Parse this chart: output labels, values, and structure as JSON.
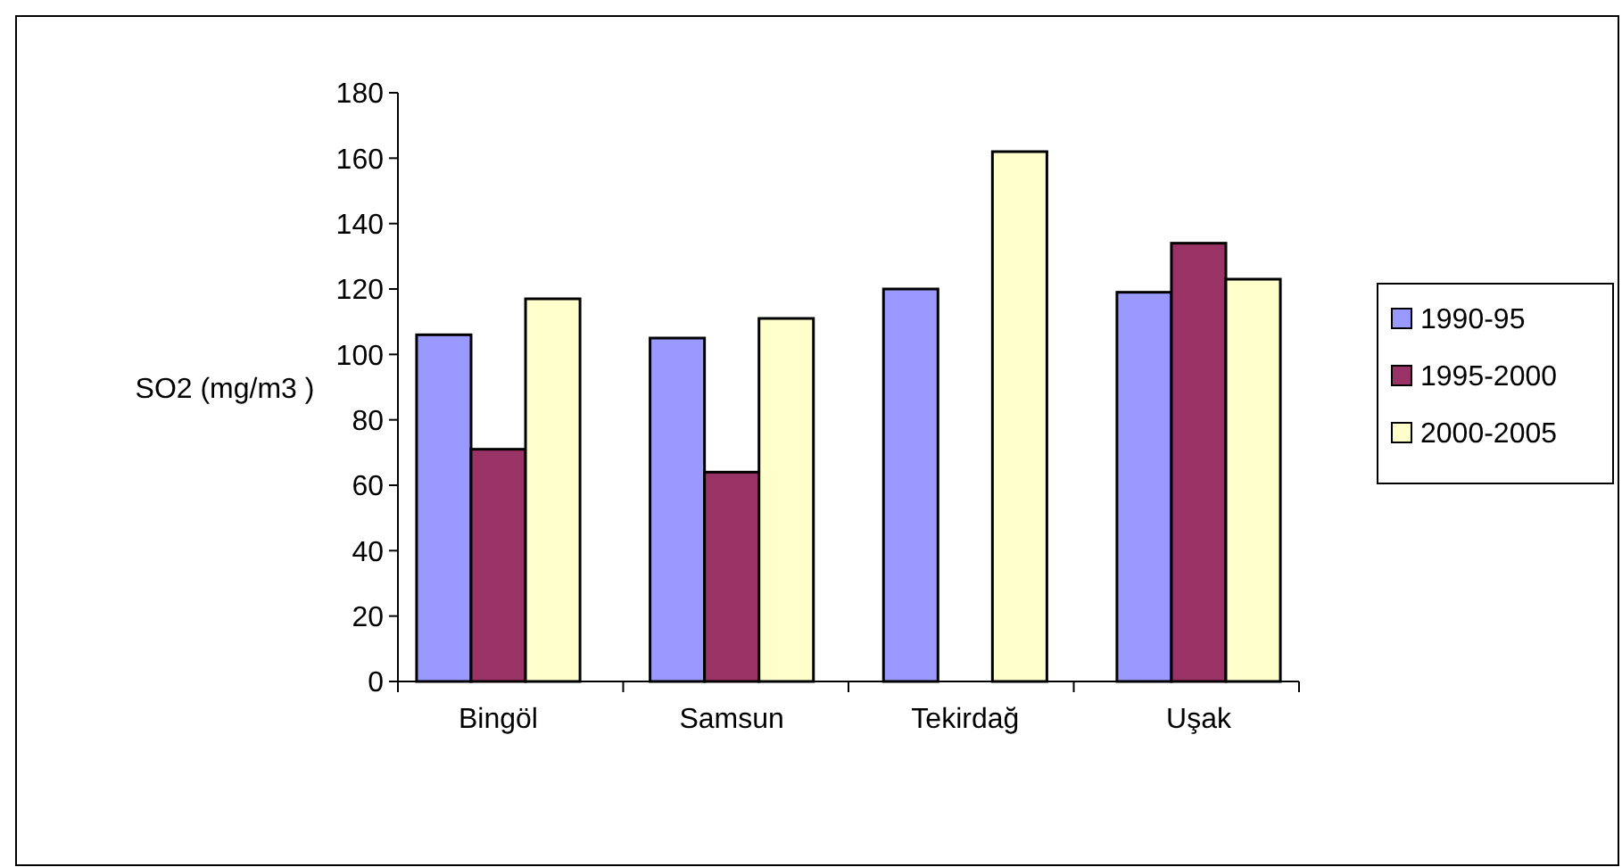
{
  "chart_data": {
    "type": "bar",
    "ylabel": "SO2 (mg/m3 )",
    "categories": [
      "Bingöl",
      "Samsun",
      "Tekirdağ",
      "Uşak"
    ],
    "series": [
      {
        "name": "1990-95",
        "color": "#9999ff",
        "values": [
          106,
          105,
          120,
          119
        ]
      },
      {
        "name": "1995-2000",
        "color": "#993366",
        "values": [
          71,
          64,
          null,
          134
        ]
      },
      {
        "name": "2000-2005",
        "color": "#ffffcc",
        "values": [
          117,
          111,
          162,
          123
        ]
      }
    ],
    "ylim": [
      0,
      180
    ],
    "yticks": [
      0,
      20,
      40,
      60,
      80,
      100,
      120,
      140,
      160,
      180
    ],
    "grid": false,
    "legend": "right"
  }
}
